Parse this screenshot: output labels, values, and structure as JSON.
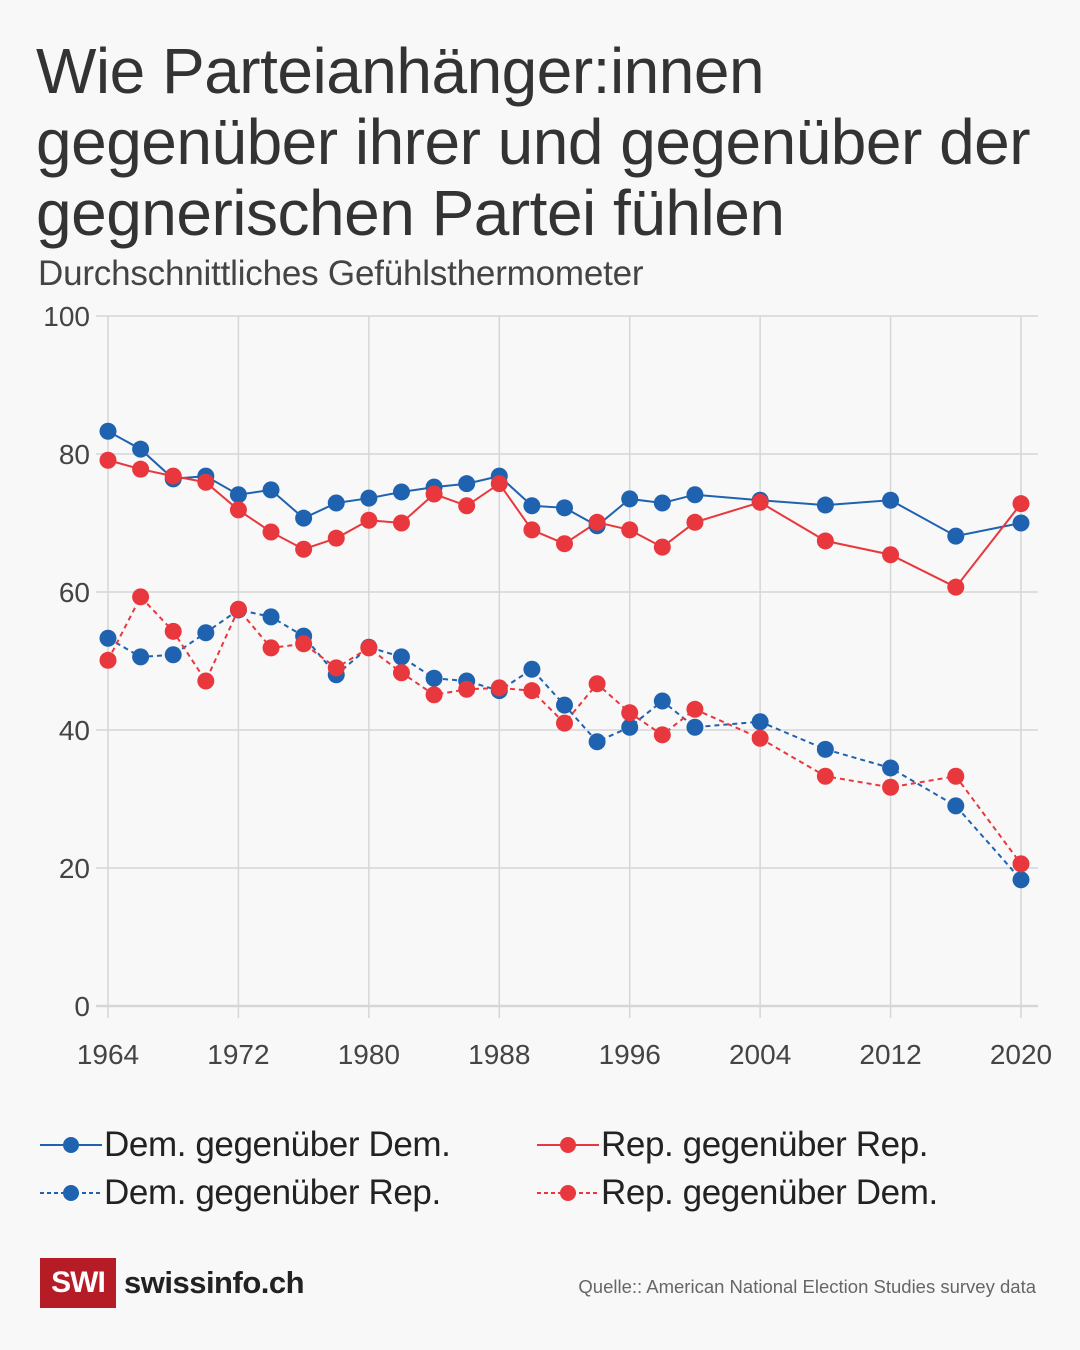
{
  "header": {
    "title": "Wie Parteianhänger:innen gegenüber ihrer und gegenüber der gegnerischen Partei fühlen",
    "subtitle": "Durchschnittliches Gefühlsthermometer"
  },
  "chart_data": {
    "type": "line",
    "title": "Wie Parteianhänger:innen gegenüber ihrer und gegenüber der gegnerischen Partei fühlen",
    "subtitle": "Durchschnittliches Gefühlsthermometer",
    "xlabel": "",
    "ylabel": "",
    "xlim": [
      1964,
      2020
    ],
    "ylim": [
      0,
      100
    ],
    "grid": true,
    "legend_position": "bottom",
    "x_ticks": [
      1964,
      1972,
      1980,
      1988,
      1996,
      2004,
      2012,
      2020
    ],
    "x_tick_labels": [
      "1964",
      "1972",
      "1980",
      "1988",
      "1996",
      "2004",
      "2012",
      "2020"
    ],
    "y_ticks": [
      0,
      20,
      40,
      60,
      80,
      100
    ],
    "y_tick_labels": [
      "0",
      "20",
      "40",
      "60",
      "80",
      "100"
    ],
    "x": [
      1964,
      1966,
      1968,
      1970,
      1972,
      1974,
      1976,
      1978,
      1980,
      1982,
      1984,
      1986,
      1988,
      1990,
      1992,
      1994,
      1996,
      1998,
      2000,
      2004,
      2008,
      2012,
      2016,
      2020
    ],
    "series": [
      {
        "name": "Dem. gegenüber Dem.",
        "color": "#1f63b0",
        "style": "solid",
        "values": [
          83.3,
          80.7,
          76.4,
          76.8,
          74.1,
          74.8,
          70.7,
          72.9,
          73.6,
          74.5,
          75.2,
          75.7,
          76.8,
          72.5,
          72.2,
          69.6,
          73.5,
          72.9,
          74.1,
          73.3,
          72.6,
          73.3,
          68.1,
          70.0
        ]
      },
      {
        "name": "Rep. gegenüber Rep.",
        "color": "#e8383d",
        "style": "solid",
        "values": [
          79.1,
          77.8,
          76.8,
          75.9,
          71.9,
          68.7,
          66.2,
          67.8,
          70.4,
          70.0,
          74.2,
          72.5,
          75.7,
          69.0,
          67.0,
          70.1,
          69.0,
          66.5,
          70.1,
          73.0,
          67.4,
          65.4,
          60.7,
          72.8
        ]
      },
      {
        "name": "Dem. gegenüber Rep.",
        "color": "#1f63b0",
        "style": "dashed",
        "values": [
          53.3,
          50.6,
          50.9,
          54.1,
          57.4,
          56.4,
          53.6,
          48.0,
          52.0,
          50.6,
          47.5,
          47.1,
          45.7,
          48.8,
          43.6,
          38.3,
          40.4,
          44.2,
          40.4,
          41.2,
          37.2,
          34.5,
          29.0,
          18.3
        ]
      },
      {
        "name": "Rep. gegenüber Dem.",
        "color": "#e8383d",
        "style": "dashed",
        "values": [
          50.1,
          59.3,
          54.3,
          47.1,
          57.5,
          51.9,
          52.5,
          49.0,
          51.9,
          48.3,
          45.1,
          45.9,
          46.1,
          45.7,
          41.0,
          46.7,
          42.5,
          39.3,
          43.0,
          38.8,
          33.3,
          31.7,
          33.3,
          20.6
        ]
      }
    ]
  },
  "legend": {
    "items": [
      {
        "label": "Dem. gegenüber Dem.",
        "color": "#1f63b0",
        "style": "solid"
      },
      {
        "label": "Rep. gegenüber Rep.",
        "color": "#e8383d",
        "style": "solid"
      },
      {
        "label": "Dem. gegenüber Rep.",
        "color": "#1f63b0",
        "style": "dashed"
      },
      {
        "label": "Rep. gegenüber Dem.",
        "color": "#e8383d",
        "style": "dashed"
      }
    ]
  },
  "footer": {
    "logo_box": "SWI",
    "logo_text": "swissinfo.ch",
    "source": "Quelle:: American National Election Studies survey data",
    "brand_color": "#b51c26"
  }
}
